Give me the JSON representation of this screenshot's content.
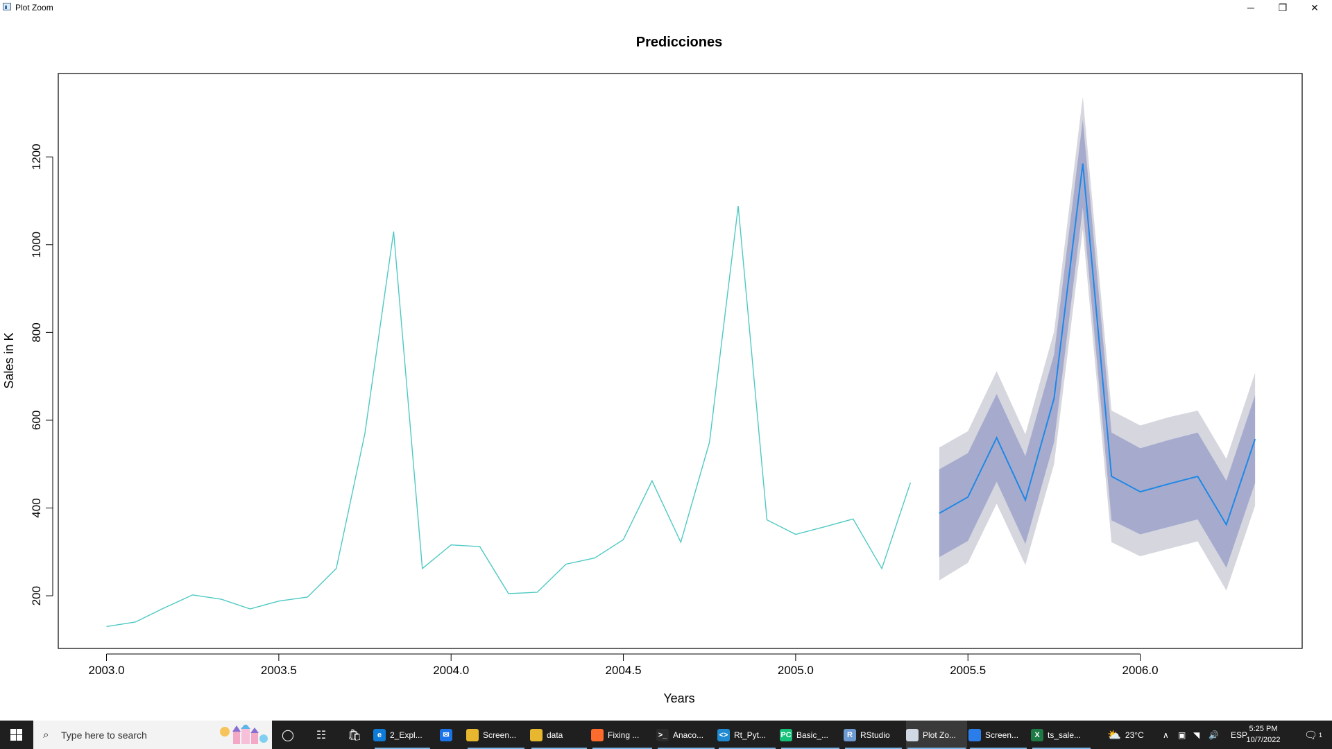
{
  "window": {
    "title": "Plot Zoom",
    "min_glyph": "─",
    "max_glyph": "❐",
    "close_glyph": "✕"
  },
  "chart_data": {
    "type": "line",
    "title": "Predicciones",
    "xlabel": "Years",
    "ylabel": "Sales in K",
    "xlim": [
      2002.86,
      2006.47
    ],
    "ylim": [
      80,
      1390
    ],
    "x_ticks": [
      2003.0,
      2003.5,
      2004.0,
      2004.5,
      2005.0,
      2005.5,
      2006.0
    ],
    "x_tick_labels": [
      "2003.0",
      "2003.5",
      "2004.0",
      "2004.5",
      "2005.0",
      "2005.5",
      "2006.0"
    ],
    "y_ticks": [
      200,
      400,
      600,
      800,
      1000,
      1200
    ],
    "y_tick_labels": [
      "200",
      "400",
      "600",
      "800",
      "1000",
      "1200"
    ],
    "grid": false,
    "colors": {
      "observed": "#4ec9c3",
      "forecast": "#1e88e5",
      "band_80": "#a6abce",
      "band_95": "#d6d6de"
    },
    "series": [
      {
        "x": [
          2003.0,
          2003.0833,
          2003.1667,
          2003.25,
          2003.3333,
          2003.4167,
          2003.5,
          2003.5833,
          2003.6667,
          2003.75,
          2003.8333,
          2003.9167,
          2004.0,
          2004.0833,
          2004.1667,
          2004.25,
          2004.3333,
          2004.4167,
          2004.5,
          2004.5833,
          2004.6667,
          2004.75,
          2004.8333,
          2004.9167,
          2005.0,
          2005.0833,
          2005.1667,
          2005.25,
          2005.3333
        ],
        "values": [
          130,
          140,
          172,
          202,
          192,
          170,
          188,
          197,
          262,
          570,
          1030,
          262,
          316,
          312,
          205,
          208,
          272,
          286,
          328,
          462,
          322,
          550,
          1088,
          373,
          340,
          357,
          375,
          262,
          458
        ]
      },
      {
        "x": [
          2005.4167,
          2005.5,
          2005.5833,
          2005.6667,
          2005.75,
          2005.8333,
          2005.9167,
          2006.0,
          2006.0833,
          2006.1667,
          2006.25,
          2006.3333
        ],
        "values": [
          388,
          425,
          560,
          418,
          650,
          1185,
          472,
          437,
          455,
          472,
          362,
          557
        ],
        "lo80": [
          288,
          325,
          460,
          318,
          550,
          1085,
          372,
          340,
          357,
          374,
          264,
          457
        ],
        "hi80": [
          488,
          525,
          660,
          518,
          750,
          1285,
          572,
          536,
          555,
          572,
          462,
          657
        ],
        "lo95": [
          235,
          275,
          410,
          270,
          500,
          1035,
          322,
          290,
          307,
          324,
          212,
          405
        ],
        "hi95": [
          538,
          575,
          712,
          568,
          802,
          1337,
          622,
          588,
          607,
          622,
          512,
          708
        ]
      }
    ]
  },
  "taskbar": {
    "search_placeholder": "Type here to search",
    "apps": [
      {
        "label": "2_Expl...",
        "icon": "edge-icon",
        "color": "#0f7bd8",
        "glyph": "e"
      },
      {
        "label": "",
        "icon": "mail-icon",
        "color": "#1a73e8",
        "glyph": "✉"
      },
      {
        "label": "Screen...",
        "icon": "folder-icon",
        "color": "#e8b730",
        "glyph": ""
      },
      {
        "label": "data",
        "icon": "folder-icon",
        "color": "#e8b730",
        "glyph": ""
      },
      {
        "label": "Fixing ...",
        "icon": "firefox-icon",
        "color": "#ff6b2c",
        "glyph": ""
      },
      {
        "label": "Anaco...",
        "icon": "terminal-icon",
        "color": "#2b2b2b",
        "glyph": ">_"
      },
      {
        "label": "Rt_Pyt...",
        "icon": "vscode-icon",
        "color": "#1f8ad2",
        "glyph": "<>"
      },
      {
        "label": "Basic_...",
        "icon": "pycharm-icon",
        "color": "#16c17a",
        "glyph": "PC"
      },
      {
        "label": "RStudio",
        "icon": "rstudio-icon",
        "color": "#6d9bd1",
        "glyph": "R"
      },
      {
        "label": "Plot Zo...",
        "icon": "plot-window-icon",
        "color": "#cfd8e3",
        "glyph": ""
      },
      {
        "label": "Screen...",
        "icon": "photos-icon",
        "color": "#2b7de9",
        "glyph": ""
      },
      {
        "label": "ts_sale...",
        "icon": "excel-icon",
        "color": "#1d7a45",
        "glyph": "X"
      }
    ],
    "weather": "23°C",
    "language": "ESP",
    "time": "5:25 PM",
    "date": "10/7/2022",
    "notification_count": "1"
  }
}
